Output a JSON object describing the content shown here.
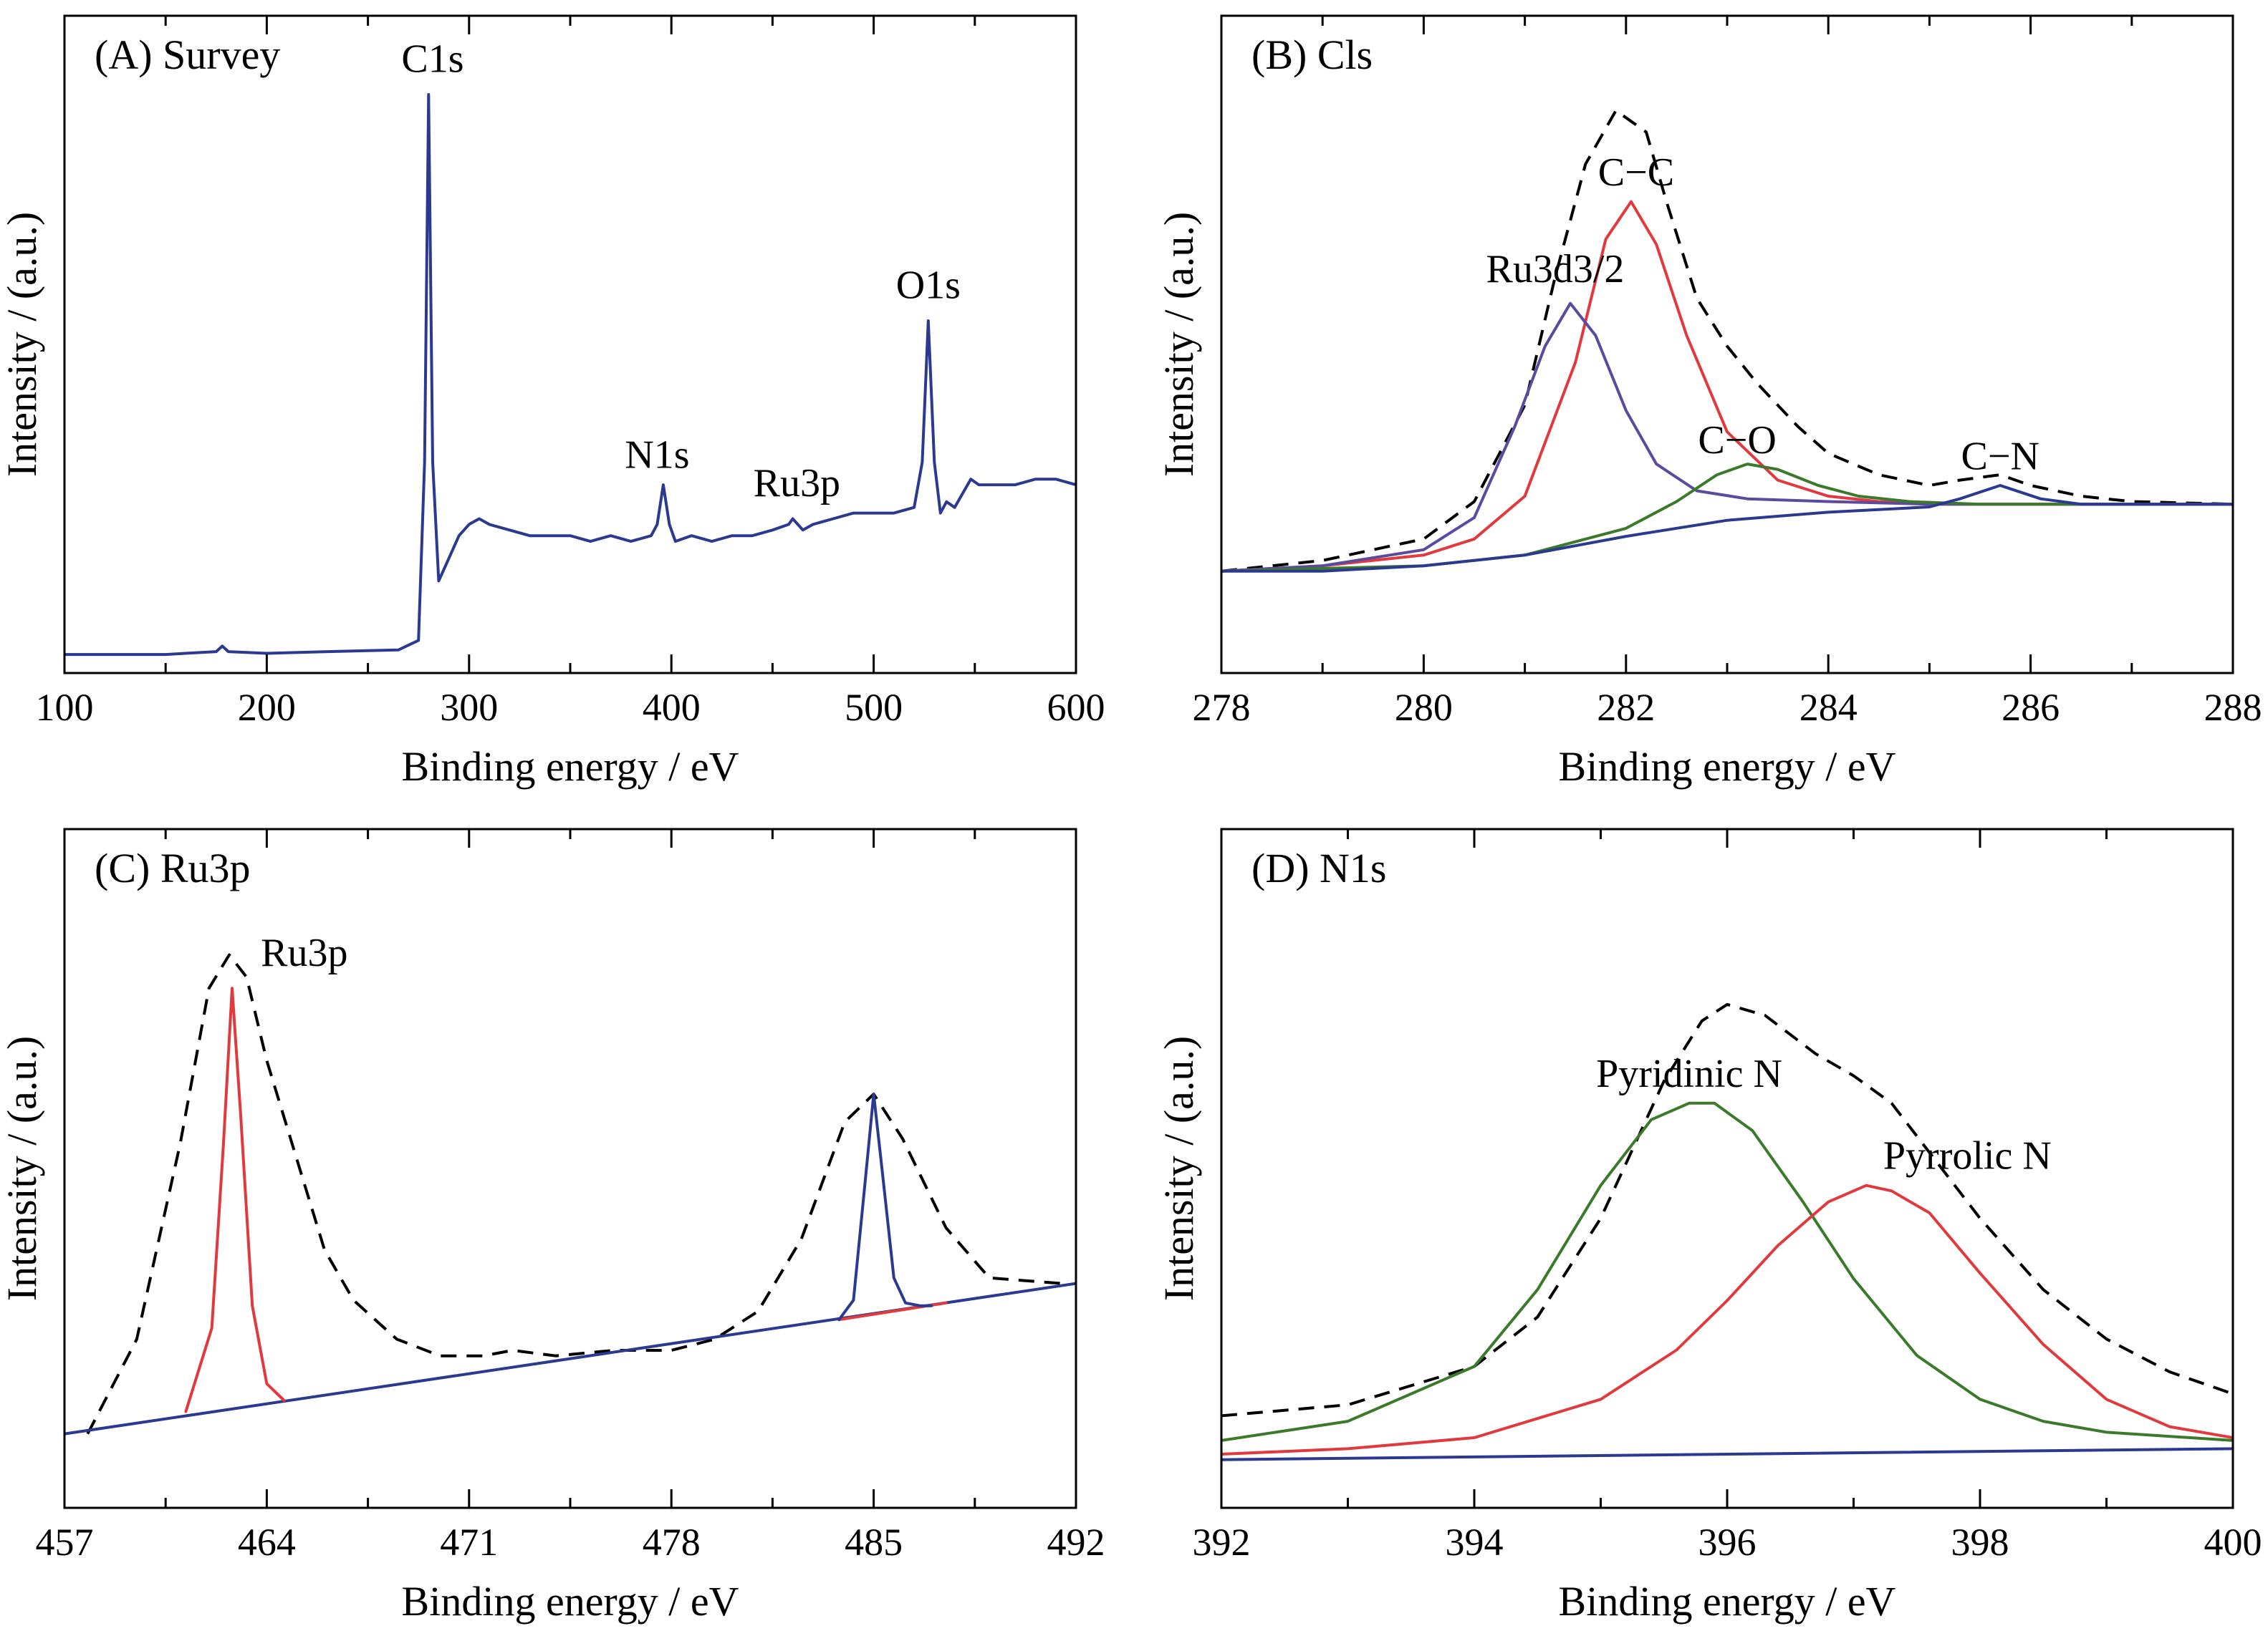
{
  "chart_data": [
    {
      "id": "A",
      "type": "line",
      "title": "(A) Survey",
      "xlabel": "Binding energy / eV",
      "ylabel": "Intensity / (a.u.)",
      "xlim": [
        100,
        600
      ],
      "ylim": [
        0,
        1
      ],
      "xticks": [
        100,
        200,
        300,
        400,
        500,
        600
      ],
      "grid": false,
      "series": [
        {
          "color": "#2b3990",
          "style": "solid",
          "x": [
            100,
            150,
            175,
            178,
            181,
            200,
            230,
            265,
            275,
            278,
            280,
            282,
            285,
            290,
            295,
            300,
            305,
            310,
            320,
            330,
            340,
            350,
            360,
            370,
            380,
            390,
            393,
            396,
            399,
            402,
            410,
            420,
            430,
            440,
            450,
            458,
            460,
            465,
            470,
            480,
            490,
            500,
            510,
            520,
            524,
            527,
            530,
            533,
            536,
            540,
            548,
            552,
            560,
            570,
            580,
            590,
            600
          ],
          "y": [
            0.01,
            0.01,
            0.015,
            0.025,
            0.015,
            0.012,
            0.015,
            0.018,
            0.035,
            0.35,
            1.0,
            0.35,
            0.14,
            0.18,
            0.22,
            0.24,
            0.25,
            0.24,
            0.23,
            0.22,
            0.22,
            0.22,
            0.21,
            0.22,
            0.21,
            0.22,
            0.24,
            0.31,
            0.24,
            0.21,
            0.22,
            0.21,
            0.22,
            0.22,
            0.23,
            0.24,
            0.25,
            0.23,
            0.24,
            0.25,
            0.26,
            0.26,
            0.26,
            0.27,
            0.35,
            0.6,
            0.35,
            0.26,
            0.28,
            0.27,
            0.32,
            0.31,
            0.31,
            0.31,
            0.32,
            0.32,
            0.31
          ]
        }
      ],
      "annotations": [
        {
          "text": "C1s",
          "x": 282,
          "y": 1.04
        },
        {
          "text": "N1s",
          "x": 393,
          "y": 0.34
        },
        {
          "text": "Ru3p",
          "x": 462,
          "y": 0.29
        },
        {
          "text": "O1s",
          "x": 527,
          "y": 0.64
        }
      ]
    },
    {
      "id": "B",
      "type": "line",
      "title": "(B) Cls",
      "xlabel": "Binding energy / eV",
      "ylabel": "Intensity / (a.u.)",
      "xlim": [
        278,
        288
      ],
      "ylim": [
        0,
        1
      ],
      "xticks": [
        278,
        280,
        282,
        284,
        286,
        288
      ],
      "grid": false,
      "series": [
        {
          "color": "#000000",
          "style": "dashed",
          "x": [
            278,
            279,
            280,
            280.5,
            281,
            281.3,
            281.6,
            281.9,
            282.2,
            282.4,
            282.7,
            283,
            283.3,
            283.7,
            284,
            284.5,
            285,
            285.3,
            285.7,
            286,
            286.5,
            287,
            288
          ],
          "y": [
            0.11,
            0.13,
            0.17,
            0.24,
            0.42,
            0.66,
            0.87,
            0.97,
            0.93,
            0.8,
            0.62,
            0.53,
            0.46,
            0.38,
            0.33,
            0.29,
            0.27,
            0.28,
            0.29,
            0.27,
            0.25,
            0.24,
            0.235
          ]
        },
        {
          "color": "#e03a3e",
          "style": "solid",
          "x": [
            278,
            279,
            280,
            280.5,
            281,
            281.5,
            281.8,
            282.05,
            282.3,
            282.6,
            283,
            283.5,
            284,
            284.5,
            285,
            286,
            287,
            288
          ],
          "y": [
            0.11,
            0.12,
            0.14,
            0.17,
            0.25,
            0.5,
            0.73,
            0.8,
            0.72,
            0.55,
            0.37,
            0.28,
            0.25,
            0.24,
            0.235,
            0.235,
            0.235,
            0.235
          ]
        },
        {
          "color": "#5b4a9e",
          "style": "solid",
          "x": [
            278,
            279,
            280,
            280.5,
            280.9,
            281.2,
            281.45,
            281.7,
            282,
            282.3,
            282.7,
            283.2,
            284,
            285,
            286,
            288
          ],
          "y": [
            0.11,
            0.12,
            0.15,
            0.21,
            0.38,
            0.53,
            0.61,
            0.55,
            0.41,
            0.31,
            0.26,
            0.245,
            0.24,
            0.235,
            0.235,
            0.235
          ]
        },
        {
          "color": "#3c7a2b",
          "style": "solid",
          "x": [
            278,
            280,
            281,
            282,
            282.5,
            282.9,
            283.2,
            283.5,
            283.9,
            284.3,
            284.8,
            285.5,
            286.5,
            288
          ],
          "y": [
            0.11,
            0.12,
            0.14,
            0.19,
            0.24,
            0.29,
            0.31,
            0.3,
            0.27,
            0.25,
            0.24,
            0.235,
            0.235,
            0.235
          ]
        },
        {
          "color": "#2b3990",
          "style": "solid",
          "x": [
            278,
            279,
            280,
            281,
            282,
            283,
            284,
            285,
            285.3,
            285.7,
            286.1,
            286.5,
            287,
            288
          ],
          "y": [
            0.11,
            0.11,
            0.12,
            0.14,
            0.175,
            0.205,
            0.22,
            0.23,
            0.245,
            0.27,
            0.245,
            0.235,
            0.235,
            0.235
          ]
        }
      ],
      "annotations": [
        {
          "text": "C−C",
          "x": 282.1,
          "y": 0.83
        },
        {
          "text": "Ru3d3/2",
          "x": 281.3,
          "y": 0.65
        },
        {
          "text": "C−O",
          "x": 283.1,
          "y": 0.33
        },
        {
          "text": "C−N",
          "x": 285.7,
          "y": 0.3
        }
      ]
    },
    {
      "id": "C",
      "type": "line",
      "title": "(C) Ru3p",
      "xlabel": "Binding energy / eV",
      "ylabel": "Intensity / (a.u.)",
      "xlim": [
        457,
        492
      ],
      "ylim": [
        0,
        1
      ],
      "xticks": [
        457,
        464,
        471,
        478,
        485,
        492
      ],
      "grid": false,
      "series": [
        {
          "color": "#000000",
          "style": "dashed",
          "x": [
            457.8,
            459.5,
            461,
            462,
            462.7,
            463.3,
            464,
            465,
            466,
            467,
            468.5,
            470,
            471.5,
            472.5,
            474,
            476,
            478,
            479.5,
            481,
            482.5,
            484,
            485,
            486,
            487.5,
            489,
            491.5
          ],
          "y": [
            0.03,
            0.2,
            0.55,
            0.83,
            0.89,
            0.85,
            0.7,
            0.53,
            0.36,
            0.27,
            0.2,
            0.17,
            0.17,
            0.18,
            0.17,
            0.18,
            0.18,
            0.2,
            0.25,
            0.38,
            0.59,
            0.64,
            0.56,
            0.4,
            0.31,
            0.3
          ]
        },
        {
          "color": "#2b3990",
          "style": "solid",
          "x": [
            457,
            492
          ],
          "y": [
            0.03,
            0.3
          ]
        },
        {
          "color": "#e03a3e",
          "style": "solid",
          "x": [
            461.2,
            462.1,
            462.5,
            462.8,
            463.1,
            463.5,
            464.0,
            464.6
          ],
          "y": [
            0.07,
            0.22,
            0.55,
            0.83,
            0.6,
            0.26,
            0.12,
            0.09
          ]
        },
        {
          "color": "#e03a3e",
          "style": "solid",
          "x": [
            483.8,
            487.5
          ],
          "y": [
            0.235,
            0.265
          ]
        },
        {
          "color": "#2b3990",
          "style": "solid",
          "x": [
            483.8,
            484.3,
            484.7,
            485.0,
            485.3,
            485.7,
            486.1,
            486.6,
            487.0
          ],
          "y": [
            0.235,
            0.27,
            0.48,
            0.64,
            0.5,
            0.31,
            0.265,
            0.26,
            0.26
          ]
        }
      ],
      "annotations": [
        {
          "text": "Ru3p",
          "x": 465.3,
          "y": 0.87
        }
      ]
    },
    {
      "id": "D",
      "type": "line",
      "title": "(D) N1s",
      "xlabel": "Binding energy / eV",
      "ylabel": "Intensity / (a.u.)",
      "xlim": [
        392,
        400
      ],
      "ylim": [
        0,
        1
      ],
      "xticks": [
        392,
        394,
        396,
        398,
        400
      ],
      "grid": false,
      "series": [
        {
          "color": "#000000",
          "style": "dashed",
          "x": [
            392,
            393,
            394,
            394.5,
            395,
            395.5,
            395.8,
            396.0,
            396.3,
            396.7,
            397.0,
            397.3,
            397.6,
            398.0,
            398.5,
            399,
            399.5,
            400
          ],
          "y": [
            0.1,
            0.12,
            0.19,
            0.28,
            0.46,
            0.71,
            0.82,
            0.85,
            0.83,
            0.76,
            0.72,
            0.67,
            0.58,
            0.46,
            0.33,
            0.24,
            0.18,
            0.14
          ]
        },
        {
          "color": "#3c7a2b",
          "style": "solid",
          "x": [
            392,
            393,
            394,
            394.5,
            395,
            395.4,
            395.7,
            395.9,
            396.2,
            396.6,
            397.0,
            397.5,
            398,
            398.5,
            399,
            400
          ],
          "y": [
            0.055,
            0.09,
            0.19,
            0.33,
            0.52,
            0.64,
            0.67,
            0.67,
            0.62,
            0.49,
            0.35,
            0.21,
            0.13,
            0.09,
            0.07,
            0.055
          ]
        },
        {
          "color": "#e03a3e",
          "style": "solid",
          "x": [
            392,
            393,
            394,
            395,
            395.6,
            396,
            396.4,
            396.8,
            397.1,
            397.3,
            397.6,
            398,
            398.5,
            399,
            399.5,
            400
          ],
          "y": [
            0.03,
            0.04,
            0.06,
            0.13,
            0.22,
            0.31,
            0.41,
            0.49,
            0.52,
            0.51,
            0.47,
            0.36,
            0.23,
            0.13,
            0.08,
            0.06
          ]
        },
        {
          "color": "#2b3990",
          "style": "solid",
          "x": [
            392,
            400
          ],
          "y": [
            0.02,
            0.04
          ]
        }
      ],
      "annotations": [
        {
          "text": "Pyridinic N",
          "x": 395.7,
          "y": 0.7
        },
        {
          "text": "Pyrrolic N",
          "x": 397.9,
          "y": 0.55
        }
      ]
    }
  ]
}
